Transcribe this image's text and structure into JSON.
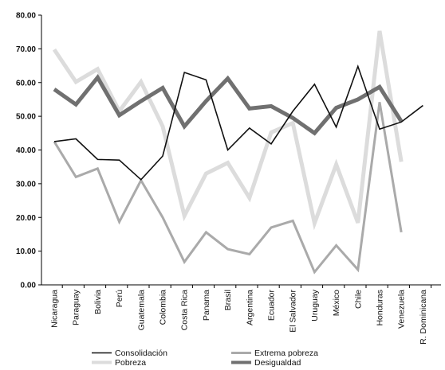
{
  "chart_data": {
    "type": "line",
    "categories": [
      "Nicaragua",
      "Paraguay",
      "Bolivia",
      "Perú",
      "Guatemala",
      "Colombia",
      "Costa Rica",
      "Panama",
      "Brasil",
      "Argentina",
      "Ecuador",
      "El Salvador",
      "Uruguay",
      "México",
      "Chile",
      "Honduras",
      "Venezuela",
      "R. Dominicana"
    ],
    "ylim": [
      0,
      80
    ],
    "yticks": [
      "0.00",
      "10.00",
      "20.00",
      "30.00",
      "40.00",
      "50.00",
      "60.00",
      "70.00",
      "80.00"
    ],
    "grid": false,
    "legend_position": "bottom",
    "series": [
      {
        "name": "Consolidación",
        "color": "#111111",
        "width": 1.6,
        "values": [
          42.5,
          43.3,
          37.2,
          37.0,
          31.2,
          38.2,
          63.0,
          60.8,
          40.0,
          46.5,
          41.8,
          51.5,
          59.5,
          46.8,
          64.8,
          46.2,
          48.3,
          53.2
        ]
      },
      {
        "name": "Extrema pobreza",
        "color": "#aaaaaa",
        "width": 3,
        "values": [
          42.5,
          32.0,
          34.5,
          18.7,
          31.0,
          20.0,
          6.8,
          15.6,
          10.6,
          9.1,
          17.0,
          19.0,
          3.8,
          11.7,
          4.5,
          54.2,
          15.6,
          null
        ]
      },
      {
        "name": "Pobreza",
        "color": "#dcdcdc",
        "width": 5,
        "values": [
          69.8,
          60.2,
          64.0,
          51.5,
          60.2,
          47.0,
          20.5,
          33.0,
          36.2,
          25.8,
          45.2,
          48.0,
          18.3,
          35.7,
          18.4,
          75.3,
          36.5,
          null
        ]
      },
      {
        "name": "Desigualdad",
        "color": "#707070",
        "width": 5,
        "values": [
          58.0,
          53.5,
          61.5,
          50.3,
          54.5,
          58.4,
          47.0,
          54.5,
          61.2,
          52.3,
          53.0,
          49.5,
          45.0,
          52.5,
          55.0,
          58.7,
          48.5,
          null
        ]
      }
    ]
  }
}
